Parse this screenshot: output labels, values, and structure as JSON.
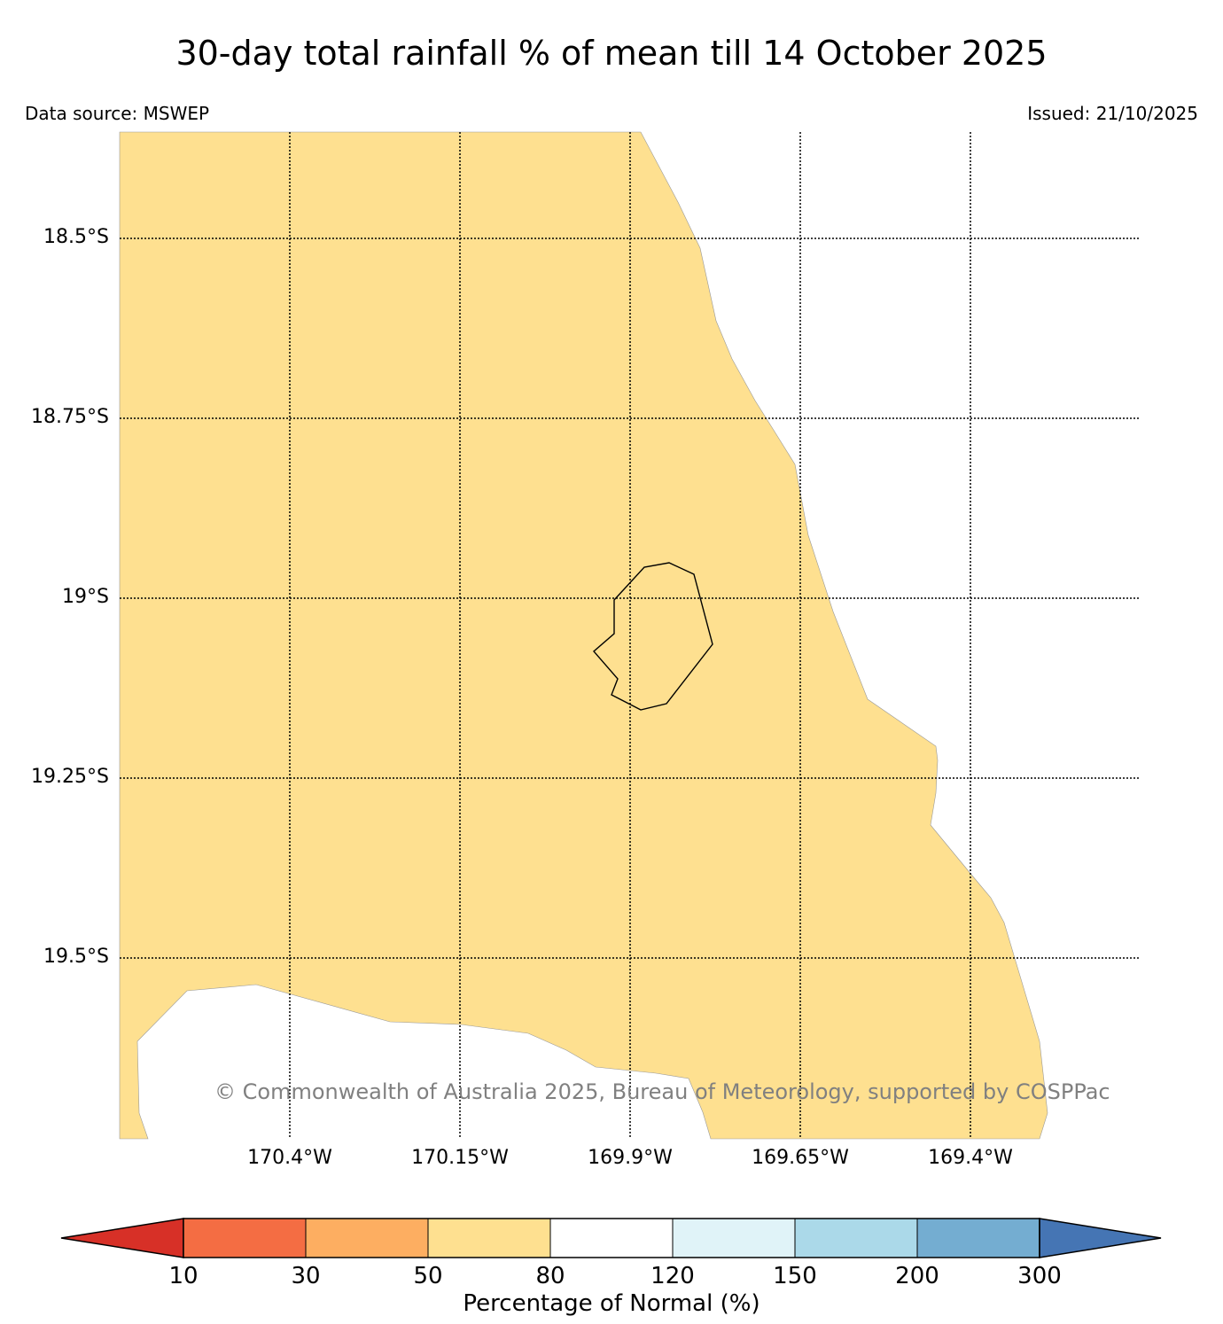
{
  "title": "30-day total rainfall % of mean till 14 October 2025",
  "data_source": "Data source: MSWEP",
  "issued": "Issued: 21/10/2025",
  "copyright": "© Commonwealth of Australia 2025, Bureau of Meteorology, supported by COSPPac",
  "map": {
    "land_category": "50-80",
    "land_color": "#fee090",
    "ocean_color": "#ffffff",
    "lat_labels": [
      "18.5°S",
      "18.75°S",
      "19°S",
      "19.25°S",
      "19.5°S"
    ],
    "lon_labels": [
      "170.4°W",
      "170.15°W",
      "169.9°W",
      "169.65°W",
      "169.4°W"
    ],
    "lat_values": [
      -18.5,
      -18.75,
      -19.0,
      -19.25,
      -19.5
    ],
    "lon_values": [
      -170.4,
      -170.15,
      -169.9,
      -169.65,
      -169.4
    ]
  },
  "colorbar": {
    "title": "Percentage of Normal (%)",
    "tick_labels": [
      "10",
      "30",
      "50",
      "80",
      "120",
      "150",
      "200",
      "300"
    ],
    "under_color": "#d73027",
    "colors": [
      "#f46d43",
      "#fdae61",
      "#fee090",
      "#ffffff",
      "#e0f3f8",
      "#abd9e9",
      "#74add1"
    ],
    "over_color": "#4575b4"
  }
}
